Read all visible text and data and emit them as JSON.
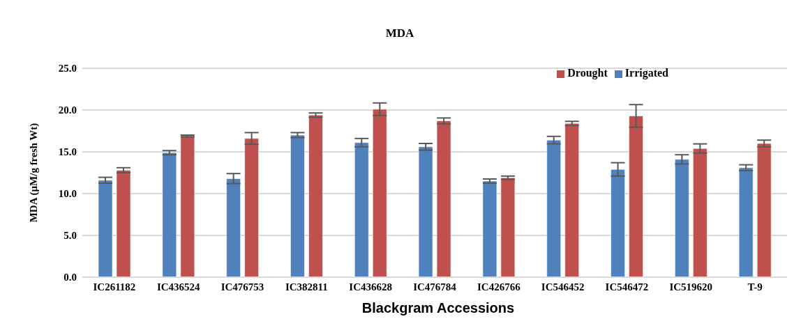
{
  "chart_data": {
    "type": "bar",
    "title": "MDA",
    "xlabel": "Blackgram Accessions",
    "ylabel": "MDA (µM/g fresh Wt)",
    "categories": [
      "IC261182",
      "IC436524",
      "IC476753",
      "IC382811",
      "IC436628",
      "IC476784",
      "IC426766",
      "IC546452",
      "IC546472",
      "IC519620",
      "T-9"
    ],
    "series": [
      {
        "name": "Irrigated",
        "color": "#4f81bd",
        "values": [
          11.6,
          14.9,
          11.8,
          17.0,
          16.1,
          15.6,
          11.5,
          16.4,
          12.9,
          14.1,
          13.1
        ],
        "errors": [
          0.35,
          0.25,
          0.6,
          0.3,
          0.5,
          0.4,
          0.25,
          0.45,
          0.8,
          0.55,
          0.35
        ]
      },
      {
        "name": "Drought",
        "color": "#c0504d",
        "values": [
          12.8,
          16.9,
          16.6,
          19.4,
          20.1,
          18.7,
          11.9,
          18.4,
          19.3,
          15.4,
          16.0
        ],
        "errors": [
          0.3,
          0.1,
          0.7,
          0.25,
          0.75,
          0.35,
          0.2,
          0.25,
          1.35,
          0.55,
          0.4
        ]
      }
    ],
    "ylim": [
      0,
      25
    ],
    "yticks": [
      {
        "value": 0,
        "label": "0.0"
      },
      {
        "value": 5,
        "label": "5.0"
      },
      {
        "value": 10,
        "label": "10.0"
      },
      {
        "value": 15,
        "label": "15.0"
      },
      {
        "value": 20,
        "label": "20.0"
      },
      {
        "value": 25,
        "label": "25.0"
      }
    ],
    "grid": "y",
    "legend": "top right"
  }
}
